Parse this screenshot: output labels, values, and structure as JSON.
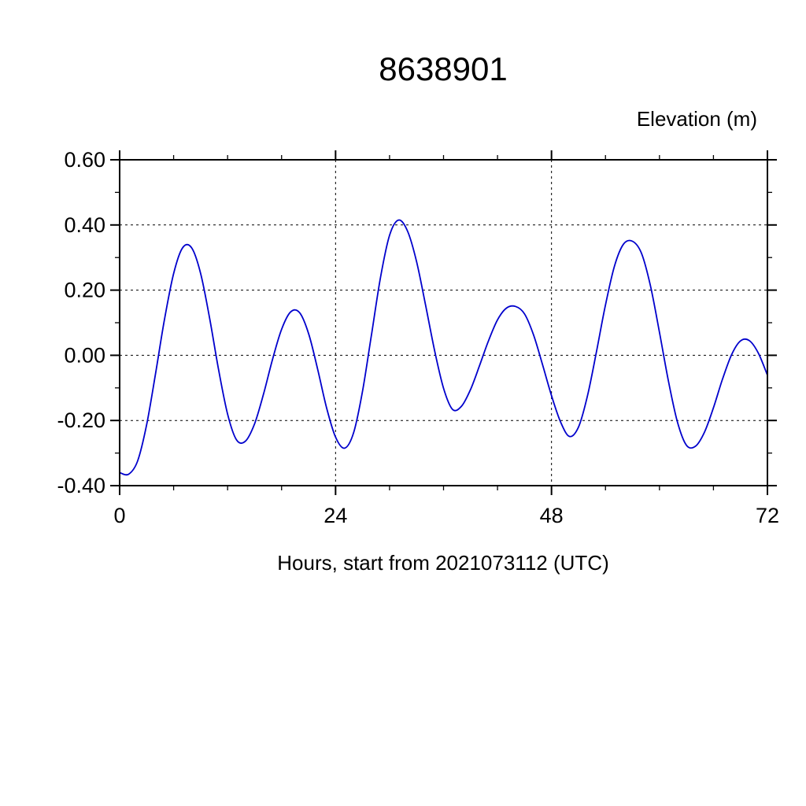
{
  "chart_data": {
    "type": "line",
    "title": "8638901",
    "ylabel_top": "Elevation (m)",
    "xlabel": "Hours, start from 2021073112 (UTC)",
    "legend": null,
    "grid": true,
    "line_color": "#0000cc",
    "x_range": [
      0,
      72
    ],
    "y_range": [
      -0.4,
      0.6
    ],
    "x_tick_values": [
      0,
      24,
      48,
      72
    ],
    "x_tick_labels": [
      "0",
      "24",
      "48",
      "72"
    ],
    "x_minor_step": 6,
    "y_tick_values": [
      -0.4,
      -0.2,
      0,
      0.2,
      0.4,
      0.6
    ],
    "y_tick_labels": [
      "-0.40",
      "-0.20",
      "0.00",
      "0.20",
      "0.40",
      "0.60"
    ],
    "y_minor_step": 0.1,
    "x": [
      0,
      1,
      2,
      3,
      4,
      5,
      6,
      7,
      8,
      9,
      10,
      11,
      12,
      13,
      14,
      15,
      16,
      17,
      18,
      19,
      20,
      21,
      22,
      23,
      24,
      25,
      26,
      27,
      28,
      29,
      30,
      31,
      32,
      33,
      34,
      35,
      36,
      37,
      38,
      39,
      40,
      41,
      42,
      43,
      44,
      45,
      46,
      47,
      48,
      49,
      50,
      51,
      52,
      53,
      54,
      55,
      56,
      57,
      58,
      59,
      60,
      61,
      62,
      63,
      64,
      65,
      66,
      67,
      68,
      69,
      70,
      71,
      72
    ],
    "y": [
      -0.36,
      -0.365,
      -0.324,
      -0.213,
      -0.055,
      0.113,
      0.251,
      0.33,
      0.33,
      0.251,
      0.114,
      -0.044,
      -0.181,
      -0.26,
      -0.263,
      -0.21,
      -0.118,
      -0.012,
      0.08,
      0.133,
      0.131,
      0.067,
      -0.042,
      -0.161,
      -0.251,
      -0.285,
      -0.238,
      -0.11,
      0.065,
      0.24,
      0.368,
      0.415,
      0.381,
      0.288,
      0.155,
      0.015,
      -0.101,
      -0.166,
      -0.156,
      -0.105,
      -0.032,
      0.045,
      0.109,
      0.145,
      0.15,
      0.127,
      0.063,
      -0.028,
      -0.124,
      -0.204,
      -0.249,
      -0.22,
      -0.124,
      0.011,
      0.155,
      0.274,
      0.341,
      0.35,
      0.313,
      0.213,
      0.071,
      -0.08,
      -0.205,
      -0.276,
      -0.279,
      -0.236,
      -0.161,
      -0.074,
      0.001,
      0.044,
      0.045,
      0.006,
      -0.061
    ]
  }
}
